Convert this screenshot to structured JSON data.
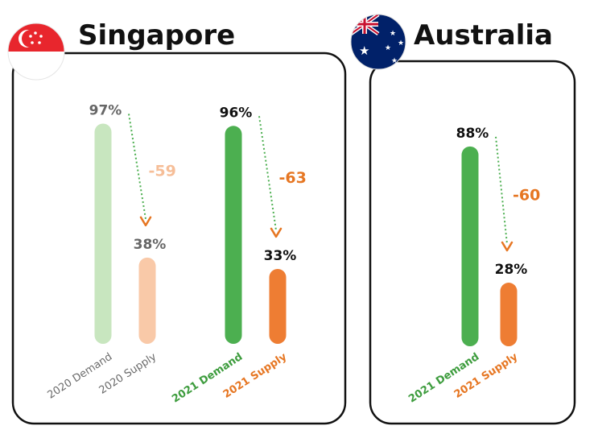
{
  "chart_data": [
    {
      "type": "bar",
      "title": "Singapore",
      "categories": [
        "2020 Demand",
        "2020 Supply",
        "2021 Demand",
        "2021 Supply"
      ],
      "values": [
        97,
        38,
        96,
        33
      ],
      "value_labels": [
        "97%",
        "38%",
        "96%",
        "33%"
      ],
      "differences": [
        {
          "from": "2020 Demand",
          "to": "2020 Supply",
          "label": "-59"
        },
        {
          "from": "2021 Demand",
          "to": "2021 Supply",
          "label": "-63"
        }
      ],
      "ylim": [
        0,
        100
      ],
      "colors": [
        "#c8e6bf",
        "#f9c9a8",
        "#4caf50",
        "#ee7d33"
      ],
      "label_colors": [
        "#6b6b6b",
        "#6b6b6b",
        "#3d9c3d",
        "#e67622"
      ],
      "value_label_colors": [
        "#666666",
        "#666666",
        "#111111",
        "#111111"
      ],
      "diff_colors": [
        "#f6be98",
        "#e67622"
      ]
    },
    {
      "type": "bar",
      "title": "Australia",
      "categories": [
        "2021 Demand",
        "2021 Supply"
      ],
      "values": [
        88,
        28
      ],
      "value_labels": [
        "88%",
        "28%"
      ],
      "differences": [
        {
          "from": "2021 Demand",
          "to": "2021 Supply",
          "label": "-60"
        }
      ],
      "ylim": [
        0,
        100
      ],
      "colors": [
        "#4caf50",
        "#ee7d33"
      ],
      "label_colors": [
        "#3d9c3d",
        "#e67622"
      ],
      "value_label_colors": [
        "#111111",
        "#111111"
      ],
      "diff_colors": [
        "#e67622"
      ]
    }
  ],
  "flags": {
    "singapore": {
      "name": "singapore-flag-icon",
      "colors": [
        "#e8262d",
        "#ffffff"
      ]
    },
    "australia": {
      "name": "australia-flag-icon",
      "colors": [
        "#012169",
        "#ffffff",
        "#c8102e"
      ]
    }
  },
  "arrow_color": "#4caf50",
  "arrow_head_color": "#e67622"
}
